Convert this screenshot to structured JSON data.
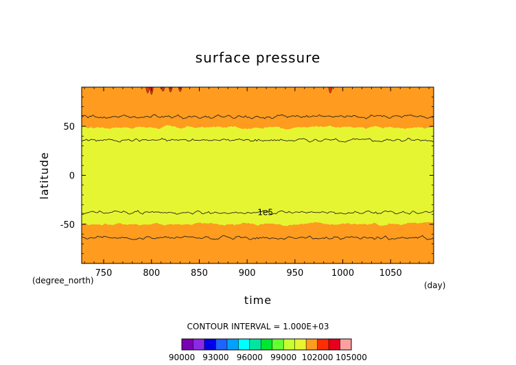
{
  "chart_data": {
    "type": "heatmap",
    "title": "surface pressure",
    "xlabel": "time",
    "ylabel": "latitude",
    "x_unit": "(day)",
    "y_unit": "(degree_north)",
    "xlim": [
      727,
      1095
    ],
    "ylim": [
      -90,
      90
    ],
    "x_ticks": [
      750,
      800,
      850,
      900,
      950,
      1000,
      1050
    ],
    "y_ticks": [
      50,
      0,
      -50
    ],
    "contour_interval_text": "CONTOUR INTERVAL = 1.000E+03",
    "contour_label": "1e5",
    "colorbar": {
      "levels": [
        90000,
        91000,
        92000,
        93000,
        94000,
        95000,
        96000,
        97000,
        98000,
        99000,
        100000,
        101000,
        102000,
        103000,
        104000,
        105000
      ],
      "colors": [
        "#7a00b4",
        "#8a2be2",
        "#0000e6",
        "#1e64ff",
        "#00a0ff",
        "#00ffff",
        "#00e6a0",
        "#00e632",
        "#64ff32",
        "#c8ff32",
        "#e6f532",
        "#ff9b1e",
        "#ff2d00",
        "#e6001e",
        "#ffa0a0"
      ],
      "tick_labels": [
        "90000",
        "93000",
        "96000",
        "99000",
        "102000",
        "105000"
      ]
    },
    "bands": {
      "north_orange_to_yellow_lat": 49,
      "south_yellow_to_orange_lat": -50
    },
    "contours": [
      {
        "value": 100000,
        "mean_lat": 36
      },
      {
        "value": 100000,
        "mean_lat": -38
      },
      {
        "value": 101000,
        "mean_lat": 60
      },
      {
        "value": 101000,
        "mean_lat": -64
      }
    ],
    "high_pressure_cells": [
      {
        "day": 796,
        "lat_min": 80
      },
      {
        "day": 800,
        "lat_min": 77
      },
      {
        "day": 812,
        "lat_min": 84
      },
      {
        "day": 820,
        "lat_min": 82
      },
      {
        "day": 830,
        "lat_min": 83
      },
      {
        "day": 987,
        "lat_min": 80
      }
    ]
  }
}
